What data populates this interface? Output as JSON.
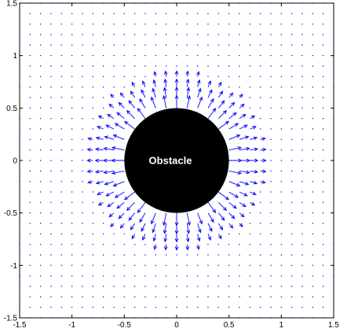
{
  "chart_data": {
    "type": "quiver",
    "title": "",
    "xlabel": "",
    "ylabel": "",
    "xlim": [
      -1.5,
      1.5
    ],
    "ylim": [
      -1.5,
      1.5
    ],
    "xticks": [
      "-1.5",
      "-1",
      "-0.5",
      "0",
      "0.5",
      "1",
      "1.5"
    ],
    "yticks": [
      "-1.5",
      "-1",
      "-0.5",
      "0",
      "0.5",
      "1",
      "1.5"
    ],
    "grid": false,
    "legend": "none",
    "field": {
      "x_range": [
        -1.5,
        1.5
      ],
      "y_range": [
        -1.5,
        1.5
      ],
      "step": 0.1,
      "description": "radial repulsive field pointing away from the obstacle center, strongest near the obstacle boundary and decaying to near zero beyond radius ~0.85",
      "center": [
        0,
        0
      ],
      "influence_radius": 0.85,
      "max_arrow_length": 0.12
    },
    "obstacle": {
      "center": [
        0,
        0
      ],
      "radius": 0.5,
      "label": "Obstacle"
    },
    "colors": {
      "arrows": "#0000ff",
      "obstacle_fill": "#000000",
      "obstacle_text": "#ffffff",
      "axes": "#000000"
    }
  }
}
